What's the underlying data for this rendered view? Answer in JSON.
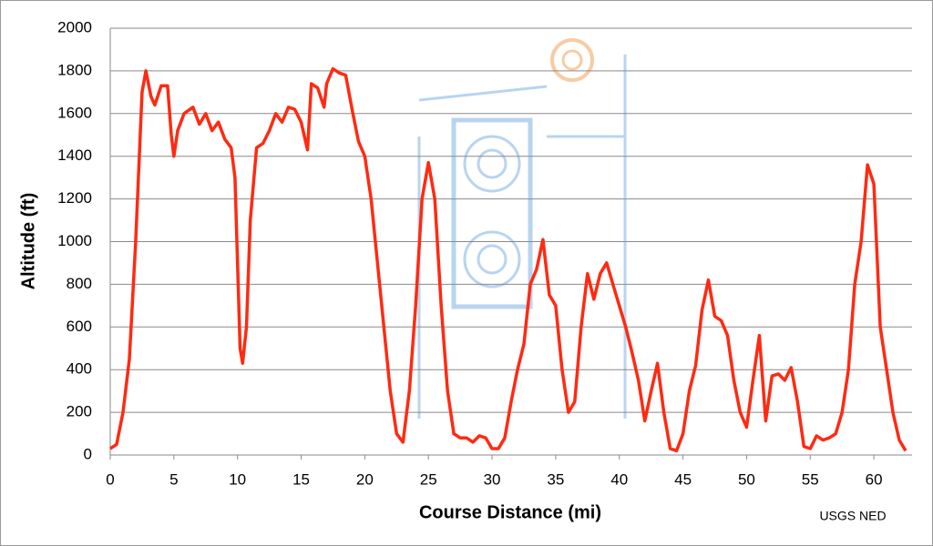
{
  "chart_data": {
    "type": "line",
    "x_label": "Course Distance (mi)",
    "y_label": "Altitude (ft)",
    "annotation": "USGS NED",
    "x": [
      0,
      0.5,
      1,
      1.5,
      2,
      2.5,
      2.8,
      3.2,
      3.5,
      4,
      4.5,
      4.8,
      5,
      5.3,
      5.8,
      6.5,
      7,
      7.5,
      8,
      8.5,
      9,
      9.5,
      9.8,
      10,
      10.2,
      10.4,
      10.7,
      11,
      11.5,
      12,
      12.5,
      13,
      13.5,
      14,
      14.5,
      15,
      15.5,
      15.8,
      16.3,
      16.8,
      17,
      17.5,
      18,
      18.5,
      19,
      19.5,
      20,
      20.5,
      21,
      21.5,
      22,
      22.5,
      23,
      23.5,
      24,
      24.5,
      25,
      25.5,
      26,
      26.5,
      27,
      27.5,
      28,
      28.5,
      29,
      29.5,
      30,
      30.5,
      31,
      31.5,
      32,
      32.5,
      33,
      33.5,
      34,
      34.5,
      35,
      35.5,
      36,
      36.5,
      37,
      37.5,
      38,
      38.5,
      39,
      39.5,
      40,
      40.5,
      41,
      41.5,
      42,
      42.5,
      43,
      43.5,
      44,
      44.5,
      45,
      45.5,
      46,
      46.5,
      47,
      47.5,
      48,
      48.5,
      49,
      49.5,
      50,
      50.5,
      51,
      51.5,
      52,
      52.5,
      53,
      53.5,
      54,
      54.5,
      55,
      55.5,
      56,
      56.5,
      57,
      57.5,
      58,
      58.5,
      59,
      59.5,
      60,
      60.5,
      61,
      61.5,
      62,
      62.5
    ],
    "values": [
      30,
      50,
      200,
      450,
      1000,
      1700,
      1800,
      1680,
      1640,
      1730,
      1730,
      1500,
      1400,
      1520,
      1600,
      1630,
      1550,
      1600,
      1520,
      1560,
      1480,
      1440,
      1300,
      900,
      500,
      430,
      600,
      1100,
      1440,
      1460,
      1520,
      1600,
      1560,
      1630,
      1620,
      1560,
      1430,
      1740,
      1720,
      1630,
      1740,
      1810,
      1790,
      1780,
      1620,
      1470,
      1400,
      1200,
      900,
      600,
      300,
      100,
      60,
      300,
      700,
      1200,
      1370,
      1200,
      700,
      300,
      100,
      80,
      80,
      60,
      90,
      80,
      30,
      30,
      80,
      250,
      400,
      520,
      800,
      870,
      1010,
      750,
      700,
      400,
      200,
      250,
      600,
      850,
      730,
      850,
      900,
      800,
      700,
      600,
      480,
      350,
      160,
      300,
      430,
      200,
      30,
      20,
      100,
      300,
      420,
      680,
      820,
      650,
      630,
      560,
      350,
      200,
      130,
      350,
      560,
      160,
      370,
      380,
      350,
      410,
      250,
      40,
      30,
      90,
      70,
      80,
      100,
      200,
      400,
      800,
      1000,
      1360,
      1270,
      600,
      400,
      200,
      70,
      20
    ],
    "color": "#ff2a12",
    "xlim": [
      0,
      63
    ],
    "ylim": [
      0,
      2000
    ],
    "xticks": [
      0,
      5,
      10,
      15,
      20,
      25,
      30,
      35,
      40,
      45,
      50,
      55,
      60
    ],
    "yticks": [
      0,
      200,
      400,
      600,
      800,
      1000,
      1200,
      1400,
      1600,
      1800,
      2000
    ],
    "grid": true
  }
}
